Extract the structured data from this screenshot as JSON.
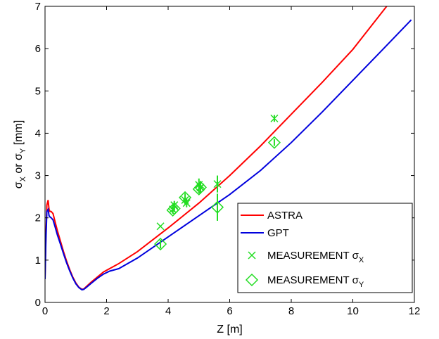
{
  "chart_data": {
    "type": "line",
    "xlabel": "Z [m]",
    "ylabel": {
      "parts": [
        "σ",
        "X",
        " or σ",
        "Y",
        " [mm]"
      ]
    },
    "xlim": [
      0,
      12
    ],
    "ylim": [
      0,
      7
    ],
    "xticks": [
      0,
      2,
      4,
      6,
      8,
      10,
      12
    ],
    "yticks": [
      0,
      1,
      2,
      3,
      4,
      5,
      6,
      7
    ],
    "grid": false,
    "legend_position": "bottom-right",
    "series": [
      {
        "name": "ASTRA",
        "kind": "line",
        "color": "#ff0000",
        "x": [
          0.0,
          0.03,
          0.06,
          0.1,
          0.13,
          0.16,
          0.2,
          0.26,
          0.33,
          0.4,
          0.5,
          0.6,
          0.7,
          0.8,
          0.9,
          1.0,
          1.1,
          1.2,
          1.26,
          1.35,
          1.5,
          1.7,
          1.9,
          2.1,
          2.3,
          2.4,
          3.0,
          4.0,
          5.0,
          6.0,
          7.0,
          8.0,
          9.0,
          10.0,
          11.1
        ],
        "y": [
          0.6,
          1.6,
          2.3,
          2.42,
          2.2,
          2.15,
          2.15,
          2.1,
          1.9,
          1.7,
          1.45,
          1.2,
          0.98,
          0.78,
          0.6,
          0.46,
          0.36,
          0.31,
          0.32,
          0.38,
          0.48,
          0.6,
          0.72,
          0.8,
          0.88,
          0.92,
          1.2,
          1.76,
          2.35,
          3.0,
          3.7,
          4.45,
          5.2,
          5.98,
          7.0
        ]
      },
      {
        "name": "GPT",
        "kind": "line",
        "color": "#0000dd",
        "x": [
          0.0,
          0.03,
          0.06,
          0.1,
          0.13,
          0.16,
          0.2,
          0.26,
          0.33,
          0.4,
          0.5,
          0.6,
          0.7,
          0.8,
          0.9,
          1.0,
          1.1,
          1.2,
          1.26,
          1.35,
          1.5,
          1.7,
          1.9,
          2.1,
          2.3,
          2.4,
          3.0,
          4.0,
          5.0,
          6.0,
          7.0,
          8.0,
          9.0,
          10.0,
          11.0,
          11.9
        ],
        "y": [
          0.55,
          1.5,
          2.15,
          2.2,
          2.05,
          2.02,
          2.0,
          1.95,
          1.78,
          1.6,
          1.38,
          1.15,
          0.94,
          0.75,
          0.58,
          0.44,
          0.35,
          0.3,
          0.31,
          0.36,
          0.45,
          0.57,
          0.67,
          0.74,
          0.78,
          0.8,
          1.05,
          1.55,
          2.05,
          2.55,
          3.12,
          3.78,
          4.5,
          5.25,
          6.0,
          6.68
        ]
      },
      {
        "name": "MEASUREMENT σX",
        "name_parts": [
          "MEASUREMENT σ",
          "X"
        ],
        "kind": "scatter",
        "marker": "x",
        "color": "#22dd22",
        "x": [
          3.75,
          4.15,
          4.2,
          4.55,
          4.6,
          5.0,
          5.05,
          5.6,
          7.45
        ],
        "y": [
          1.8,
          2.2,
          2.3,
          2.42,
          2.35,
          2.78,
          2.72,
          2.8,
          4.35
        ],
        "err": [
          0.0,
          0.1,
          0.1,
          0.1,
          0.1,
          0.15,
          0.15,
          0.2,
          0.08
        ]
      },
      {
        "name": "MEASUREMENT σY",
        "name_parts": [
          "MEASUREMENT σ",
          "Y"
        ],
        "kind": "scatter",
        "marker": "diamond",
        "color": "#22dd22",
        "x": [
          3.75,
          4.15,
          4.2,
          4.55,
          5.0,
          5.05,
          5.6,
          7.45
        ],
        "y": [
          1.38,
          2.18,
          2.22,
          2.48,
          2.68,
          2.72,
          2.25,
          3.78
        ],
        "err": [
          0.1,
          0.08,
          0.08,
          0.1,
          0.1,
          0.1,
          0.32,
          0.08
        ]
      }
    ]
  }
}
